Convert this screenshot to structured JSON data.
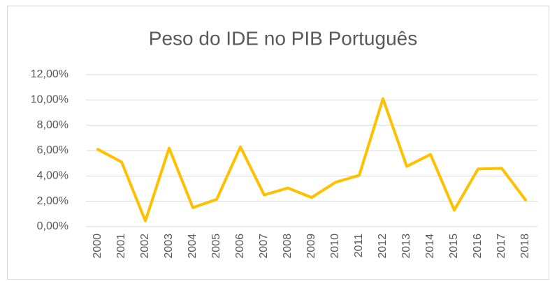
{
  "chart_data": {
    "type": "line",
    "title": "Peso do IDE no PIB Português",
    "categories": [
      "2000",
      "2001",
      "2002",
      "2003",
      "2004",
      "2005",
      "2006",
      "2007",
      "2008",
      "2009",
      "2010",
      "2011",
      "2012",
      "2013",
      "2014",
      "2015",
      "2016",
      "2017",
      "2018"
    ],
    "series": [
      {
        "name": null,
        "color": "#ffc000",
        "values": [
          6.1,
          5.1,
          0.45,
          6.2,
          1.5,
          2.15,
          6.3,
          2.5,
          3.05,
          2.3,
          3.5,
          4.05,
          10.1,
          4.75,
          5.7,
          1.3,
          4.55,
          4.6,
          2.1
        ]
      }
    ],
    "ylim": [
      0,
      12
    ],
    "yticks": [
      {
        "value": 0,
        "label": "0,00%"
      },
      {
        "value": 2,
        "label": "2,00%"
      },
      {
        "value": 4,
        "label": "4,00%"
      },
      {
        "value": 6,
        "label": "6,00%"
      },
      {
        "value": 8,
        "label": "8,00%"
      },
      {
        "value": 10,
        "label": "10,00%"
      },
      {
        "value": 12,
        "label": "12,00%"
      }
    ],
    "grid": true
  }
}
